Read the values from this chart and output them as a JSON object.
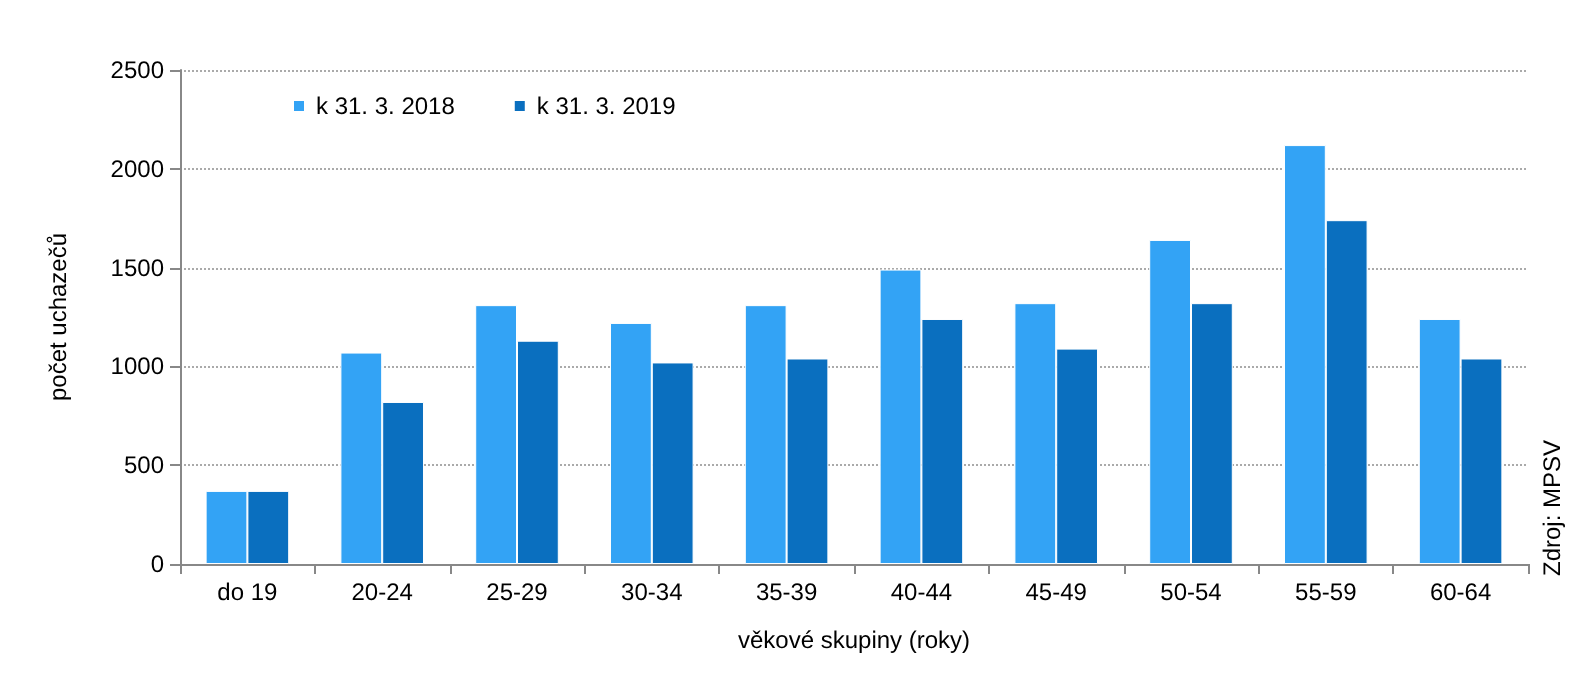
{
  "chart_data": {
    "type": "bar",
    "xlabel": "věkové skupiny (roky)",
    "ylabel": "počet uchazečů",
    "categories": [
      "do 19",
      "20-24",
      "25-29",
      "30-34",
      "35-39",
      "40-44",
      "45-49",
      "50-54",
      "55-59",
      "60-64"
    ],
    "series": [
      {
        "name": "k 31. 3. 2018",
        "color": "#33a3f5",
        "values": [
          370,
          1070,
          1310,
          1220,
          1310,
          1490,
          1320,
          1640,
          2120,
          1240
        ]
      },
      {
        "name": "k 31. 3. 2019",
        "color": "#0a6fbf",
        "values": [
          370,
          820,
          1130,
          1020,
          1040,
          1240,
          1090,
          1320,
          1740,
          1040
        ]
      }
    ],
    "ylim": [
      0,
      2500
    ],
    "yticks": [
      0,
      500,
      1000,
      1500,
      2000,
      2500
    ],
    "grid": "y",
    "legend": "top left",
    "annotations": [
      "Zdroj: MPSV"
    ]
  }
}
